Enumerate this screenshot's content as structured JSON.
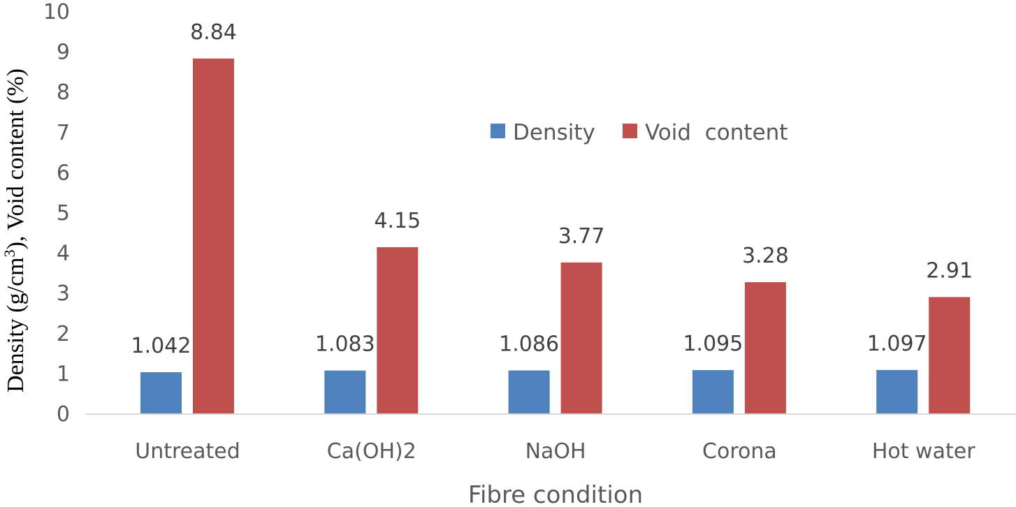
{
  "chart_data": {
    "type": "bar",
    "categories": [
      "Untreated",
      "Ca(OH)2",
      "NaOH",
      "Corona",
      "Hot water"
    ],
    "series": [
      {
        "name": "Density",
        "color": "#4f81bd",
        "values": [
          1.042,
          1.083,
          1.086,
          1.095,
          1.097
        ],
        "labels": [
          "1.042",
          "1.083",
          "1.086",
          "1.095",
          "1.097"
        ]
      },
      {
        "name": "Void  content",
        "color": "#c0504d",
        "values": [
          8.84,
          4.15,
          3.77,
          3.28,
          2.91
        ],
        "labels": [
          "8.84",
          "4.15",
          "3.77",
          "3.28",
          "2.91"
        ]
      }
    ],
    "xlabel": "Fibre condition",
    "ylabel": {
      "pre": "Density (g/cm",
      "sup": "3",
      "post": "),  Void content (%)"
    },
    "ylim": [
      0,
      10
    ],
    "yticks": [
      "0",
      "1",
      "2",
      "3",
      "4",
      "5",
      "6",
      "7",
      "8",
      "9",
      "10"
    ],
    "grid": false,
    "legend_position": "top-center",
    "axis_color": "#d9d9d9"
  }
}
